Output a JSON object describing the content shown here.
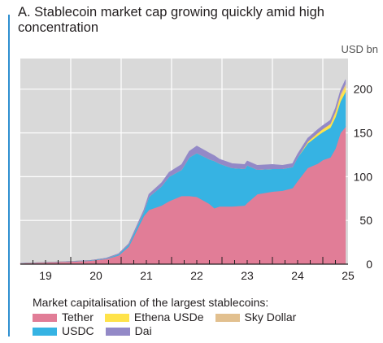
{
  "chart_data": {
    "type": "area",
    "title": "A. Stablecoin market cap growing quickly amid high concentration",
    "unit_label": "USD bn",
    "xlabel": "",
    "ylabel": "",
    "xlim": [
      2018.5,
      2025.0
    ],
    "ylim": [
      0,
      235
    ],
    "y_ticks": [
      0,
      50,
      100,
      150,
      200
    ],
    "x_ticks": [
      "19",
      "20",
      "21",
      "22",
      "23",
      "24",
      "25"
    ],
    "x_tick_positions": [
      2019,
      2020,
      2021,
      2022,
      2023,
      2024,
      2025
    ],
    "y_axis_side": "right",
    "grid": true,
    "legend_title": "Market capitalisation of the largest stablecoins:",
    "legend_placement": "bottom",
    "x": [
      2018.5,
      2019.0,
      2019.5,
      2019.9,
      2020.2,
      2020.45,
      2020.65,
      2020.95,
      2021.05,
      2021.3,
      2021.45,
      2021.7,
      2021.85,
      2022.0,
      2022.25,
      2022.35,
      2022.45,
      2022.7,
      2022.95,
      2023.0,
      2023.2,
      2023.5,
      2023.7,
      2023.9,
      2024.0,
      2024.2,
      2024.4,
      2024.5,
      2024.65,
      2024.75,
      2024.85,
      2024.95
    ],
    "series": [
      {
        "name": "Tether",
        "color": "#e17d97",
        "values": [
          1,
          2,
          3,
          4,
          6,
          10,
          20,
          55,
          62,
          67,
          72,
          78,
          78,
          77,
          69,
          64,
          66,
          66,
          67,
          70,
          80,
          83,
          84,
          87,
          95,
          110,
          115,
          119,
          122,
          132,
          150,
          157
        ]
      },
      {
        "name": "USDC",
        "color": "#36b3e3",
        "values": [
          0,
          0,
          0.2,
          0.4,
          0.6,
          1.5,
          2.5,
          5,
          15,
          22,
          28,
          30,
          44,
          50,
          51,
          54,
          49,
          44,
          42,
          43,
          28,
          26,
          25,
          24,
          27,
          28,
          32,
          32,
          34,
          36,
          36,
          40
        ]
      },
      {
        "name": "Ethena USDe",
        "color": "#ffe34a",
        "values": [
          0,
          0,
          0,
          0,
          0,
          0,
          0,
          0,
          0,
          0,
          0,
          0,
          0,
          0,
          0,
          0,
          0,
          0,
          0,
          0,
          0,
          0,
          0,
          0,
          0,
          2,
          3,
          3.5,
          4,
          5,
          6,
          6
        ]
      },
      {
        "name": "Sky Dollar",
        "color": "#e2c08f",
        "values": [
          0,
          0,
          0,
          0,
          0,
          0,
          0,
          0,
          0,
          0,
          0,
          0,
          0,
          0,
          0,
          0,
          0,
          0,
          0,
          0,
          0,
          0,
          0,
          0,
          0,
          0,
          0,
          0,
          0.5,
          1.5,
          2.5,
          3
        ]
      },
      {
        "name": "Dai",
        "color": "#9389c7",
        "values": [
          0,
          0,
          0,
          0.1,
          0.3,
          0.6,
          1,
          2,
          3,
          4,
          5,
          6,
          7,
          8,
          7,
          6,
          5,
          5,
          5,
          5,
          5,
          5,
          4,
          4,
          4,
          4,
          4,
          4,
          4,
          4,
          4,
          5
        ]
      }
    ]
  }
}
